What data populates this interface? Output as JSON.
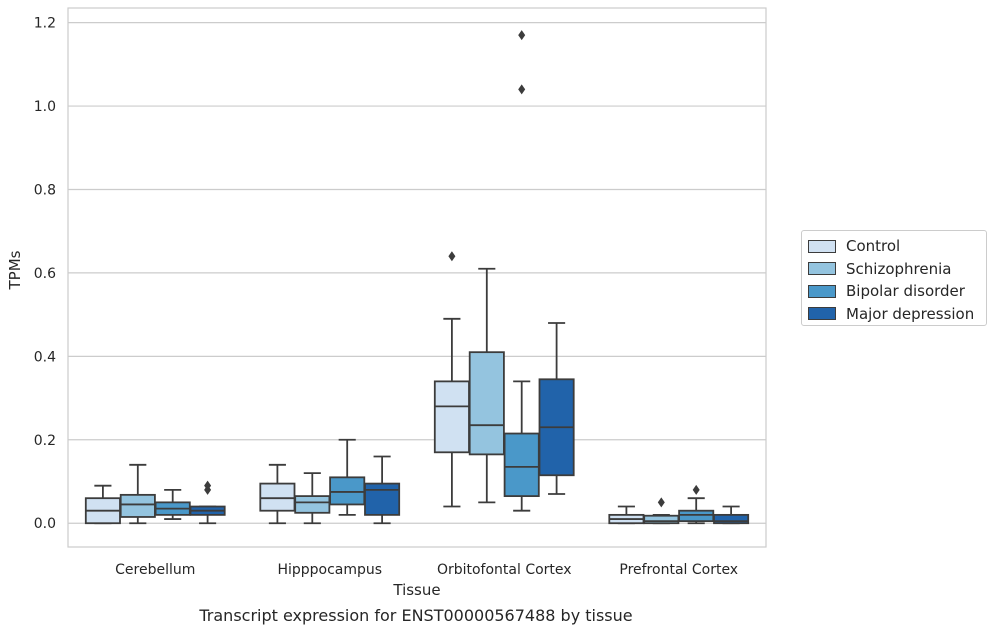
{
  "chart_data": {
    "type": "box",
    "caption": "Transcript expression for ENST00000567488 by tissue",
    "xlabel": "Tissue",
    "ylabel": "TPMs",
    "ylim": [
      -0.057,
      1.235
    ],
    "yticks": [
      "0.0",
      "0.2",
      "0.4",
      "0.6",
      "0.8",
      "1.0",
      "1.2"
    ],
    "grid": true,
    "legend_position": "right",
    "categories": [
      "Cerebellum",
      "Hipppocampus",
      "Orbitofontal Cortex",
      "Prefrontal Cortex"
    ],
    "series": [
      {
        "name": "Control",
        "color": "#d0e1f2",
        "boxes": [
          {
            "whislo": 0.0,
            "q1": 0.0,
            "med": 0.03,
            "q3": 0.06,
            "whishi": 0.09,
            "fliers": []
          },
          {
            "whislo": 0.0,
            "q1": 0.03,
            "med": 0.06,
            "q3": 0.095,
            "whishi": 0.14,
            "fliers": []
          },
          {
            "whislo": 0.04,
            "q1": 0.17,
            "med": 0.28,
            "q3": 0.34,
            "whishi": 0.49,
            "fliers": [
              0.64
            ]
          },
          {
            "whislo": 0.0,
            "q1": 0.0,
            "med": 0.01,
            "q3": 0.02,
            "whishi": 0.04,
            "fliers": []
          }
        ]
      },
      {
        "name": "Schizophrenia",
        "color": "#94c4df",
        "boxes": [
          {
            "whislo": 0.0,
            "q1": 0.015,
            "med": 0.045,
            "q3": 0.068,
            "whishi": 0.14,
            "fliers": []
          },
          {
            "whislo": 0.0,
            "q1": 0.025,
            "med": 0.05,
            "q3": 0.065,
            "whishi": 0.12,
            "fliers": []
          },
          {
            "whislo": 0.05,
            "q1": 0.165,
            "med": 0.235,
            "q3": 0.41,
            "whishi": 0.61,
            "fliers": []
          },
          {
            "whislo": 0.0,
            "q1": 0.0,
            "med": 0.005,
            "q3": 0.018,
            "whishi": 0.02,
            "fliers": [
              0.05
            ]
          }
        ]
      },
      {
        "name": "Bipolar disorder",
        "color": "#4a98c9",
        "boxes": [
          {
            "whislo": 0.01,
            "q1": 0.02,
            "med": 0.035,
            "q3": 0.05,
            "whishi": 0.08,
            "fliers": []
          },
          {
            "whislo": 0.02,
            "q1": 0.045,
            "med": 0.075,
            "q3": 0.11,
            "whishi": 0.2,
            "fliers": []
          },
          {
            "whislo": 0.03,
            "q1": 0.065,
            "med": 0.135,
            "q3": 0.215,
            "whishi": 0.34,
            "fliers": [
              1.04,
              1.17
            ]
          },
          {
            "whislo": 0.0,
            "q1": 0.005,
            "med": 0.02,
            "q3": 0.03,
            "whishi": 0.06,
            "fliers": [
              0.08
            ]
          }
        ]
      },
      {
        "name": "Major depression",
        "color": "#2163aa",
        "boxes": [
          {
            "whislo": 0.0,
            "q1": 0.02,
            "med": 0.03,
            "q3": 0.04,
            "whishi": 0.04,
            "fliers": [
              0.08,
              0.09
            ]
          },
          {
            "whislo": 0.0,
            "q1": 0.02,
            "med": 0.08,
            "q3": 0.095,
            "whishi": 0.16,
            "fliers": []
          },
          {
            "whislo": 0.07,
            "q1": 0.115,
            "med": 0.23,
            "q3": 0.345,
            "whishi": 0.48,
            "fliers": []
          },
          {
            "whislo": 0.0,
            "q1": 0.0,
            "med": 0.005,
            "q3": 0.02,
            "whishi": 0.04,
            "fliers": []
          }
        ]
      }
    ]
  }
}
